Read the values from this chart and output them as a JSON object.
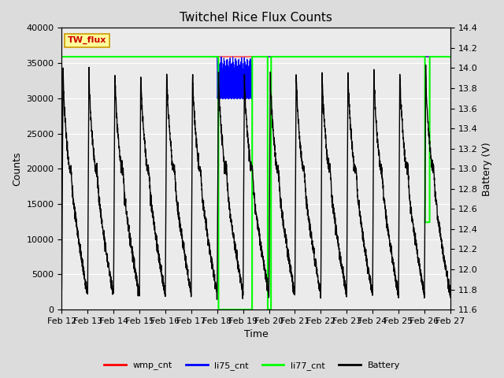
{
  "title": "Twitchel Rice Flux Counts",
  "xlabel": "Time",
  "ylabel_left": "Counts",
  "ylabel_right": "Battery (V)",
  "ylim_left": [
    0,
    40000
  ],
  "ylim_right": [
    11.6,
    14.4
  ],
  "background_color": "#dcdcdc",
  "plot_bg_color": "#ebebeb",
  "grid_color": "#ffffff",
  "xtick_labels": [
    "Feb 12",
    "Feb 13",
    "Feb 14",
    "Feb 15",
    "Feb 16",
    "Feb 17",
    "Feb 18",
    "Feb 19",
    "Feb 20",
    "Feb 21",
    "Feb 22",
    "Feb 23",
    "Feb 24",
    "Feb 25",
    "Feb 26",
    "Feb 27"
  ],
  "li77_value": 35900,
  "li75_value": 35900,
  "wmp_value": 35900,
  "watermark_text": "TW_flux",
  "watermark_color": "#cc0000",
  "watermark_bg": "#ffff99",
  "watermark_border": "#cc9900",
  "battery_peak": 14.0,
  "battery_min": 11.75,
  "figsize": [
    6.4,
    4.8
  ],
  "dpi": 100
}
